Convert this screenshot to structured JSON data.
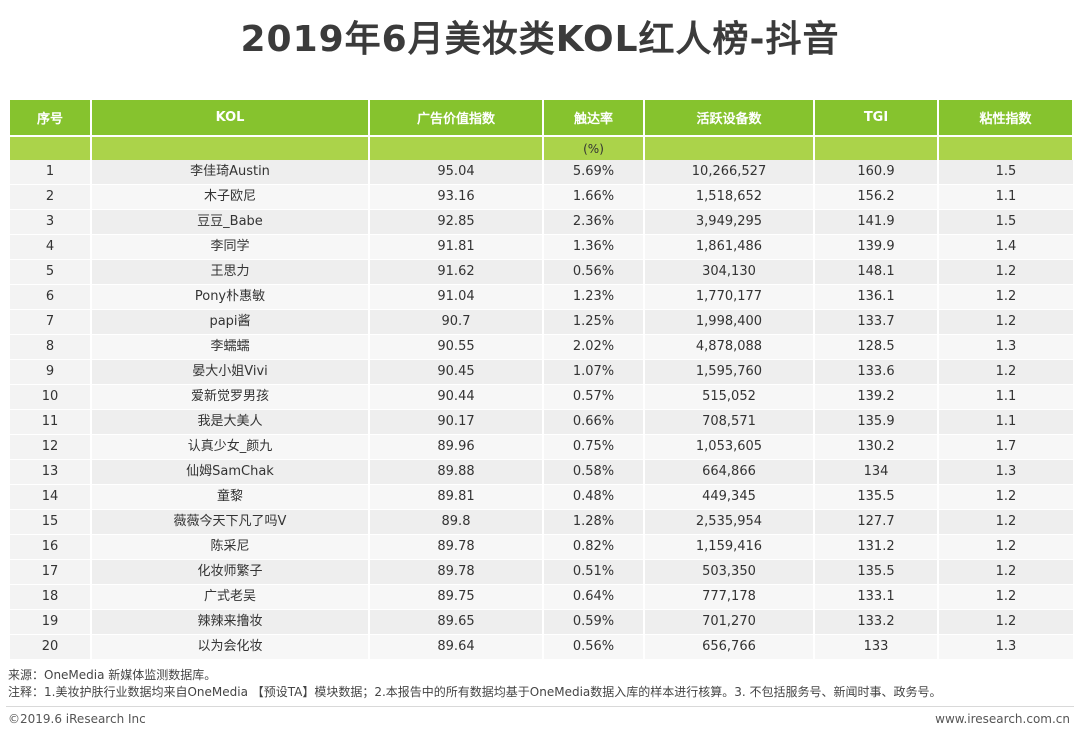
{
  "title": "2019年6月美妆类KOL红人榜-抖音",
  "table": {
    "headers": [
      "序号",
      "KOL",
      "广告价值指数",
      "触达率",
      "活跃设备数",
      "TGI",
      "粘性指数"
    ],
    "subheaders": [
      "",
      "",
      "",
      "(%)",
      "",
      "",
      ""
    ],
    "rows": [
      [
        "1",
        "李佳琦Austin",
        "95.04",
        "5.69%",
        "10,266,527",
        "160.9",
        "1.5"
      ],
      [
        "2",
        "木子欧尼",
        "93.16",
        "1.66%",
        "1,518,652",
        "156.2",
        "1.1"
      ],
      [
        "3",
        "豆豆_Babe",
        "92.85",
        "2.36%",
        "3,949,295",
        "141.9",
        "1.5"
      ],
      [
        "4",
        "李同学",
        "91.81",
        "1.36%",
        "1,861,486",
        "139.9",
        "1.4"
      ],
      [
        "5",
        "王思力",
        "91.62",
        "0.56%",
        "304,130",
        "148.1",
        "1.2"
      ],
      [
        "6",
        "Pony朴惠敏",
        "91.04",
        "1.23%",
        "1,770,177",
        "136.1",
        "1.2"
      ],
      [
        "7",
        "papi酱",
        "90.7",
        "1.25%",
        "1,998,400",
        "133.7",
        "1.2"
      ],
      [
        "8",
        "李蠕蠕",
        "90.55",
        "2.02%",
        "4,878,088",
        "128.5",
        "1.3"
      ],
      [
        "9",
        "晏大小姐Vivi",
        "90.45",
        "1.07%",
        "1,595,760",
        "133.6",
        "1.2"
      ],
      [
        "10",
        "爱新觉罗男孩",
        "90.44",
        "0.57%",
        "515,052",
        "139.2",
        "1.1"
      ],
      [
        "11",
        "我是大美人",
        "90.17",
        "0.66%",
        "708,571",
        "135.9",
        "1.1"
      ],
      [
        "12",
        "认真少女_颜九",
        "89.96",
        "0.75%",
        "1,053,605",
        "130.2",
        "1.7"
      ],
      [
        "13",
        "仙姆SamChak",
        "89.88",
        "0.58%",
        "664,866",
        "134",
        "1.3"
      ],
      [
        "14",
        "童黎",
        "89.81",
        "0.48%",
        "449,345",
        "135.5",
        "1.2"
      ],
      [
        "15",
        "薇薇今天下凡了吗V",
        "89.8",
        "1.28%",
        "2,535,954",
        "127.7",
        "1.2"
      ],
      [
        "16",
        "陈采尼",
        "89.78",
        "0.82%",
        "1,159,416",
        "131.2",
        "1.2"
      ],
      [
        "17",
        "化妆师繁子",
        "89.78",
        "0.51%",
        "503,350",
        "135.5",
        "1.2"
      ],
      [
        "18",
        "广式老吴",
        "89.75",
        "0.64%",
        "777,178",
        "133.1",
        "1.2"
      ],
      [
        "19",
        "辣辣来撸妆",
        "89.65",
        "0.59%",
        "701,270",
        "133.2",
        "1.2"
      ],
      [
        "20",
        "以为会化妆",
        "89.64",
        "0.56%",
        "656,766",
        "133",
        "1.3"
      ]
    ]
  },
  "source": "来源：OneMedia 新媒体监测数据库。",
  "note": "注释：1.美妆护肤行业数据均来自OneMedia 【预设TA】模块数据；2.本报告中的所有数据均基于OneMedia数据入库的样本进行核算。3. 不包括服务号、新闻时事、政务号。",
  "copyright": "©2019.6 iResearch Inc",
  "website": "www.iresearch.com.cn",
  "colors": {
    "header": "#86c32e",
    "subheader": "#abd34a"
  }
}
